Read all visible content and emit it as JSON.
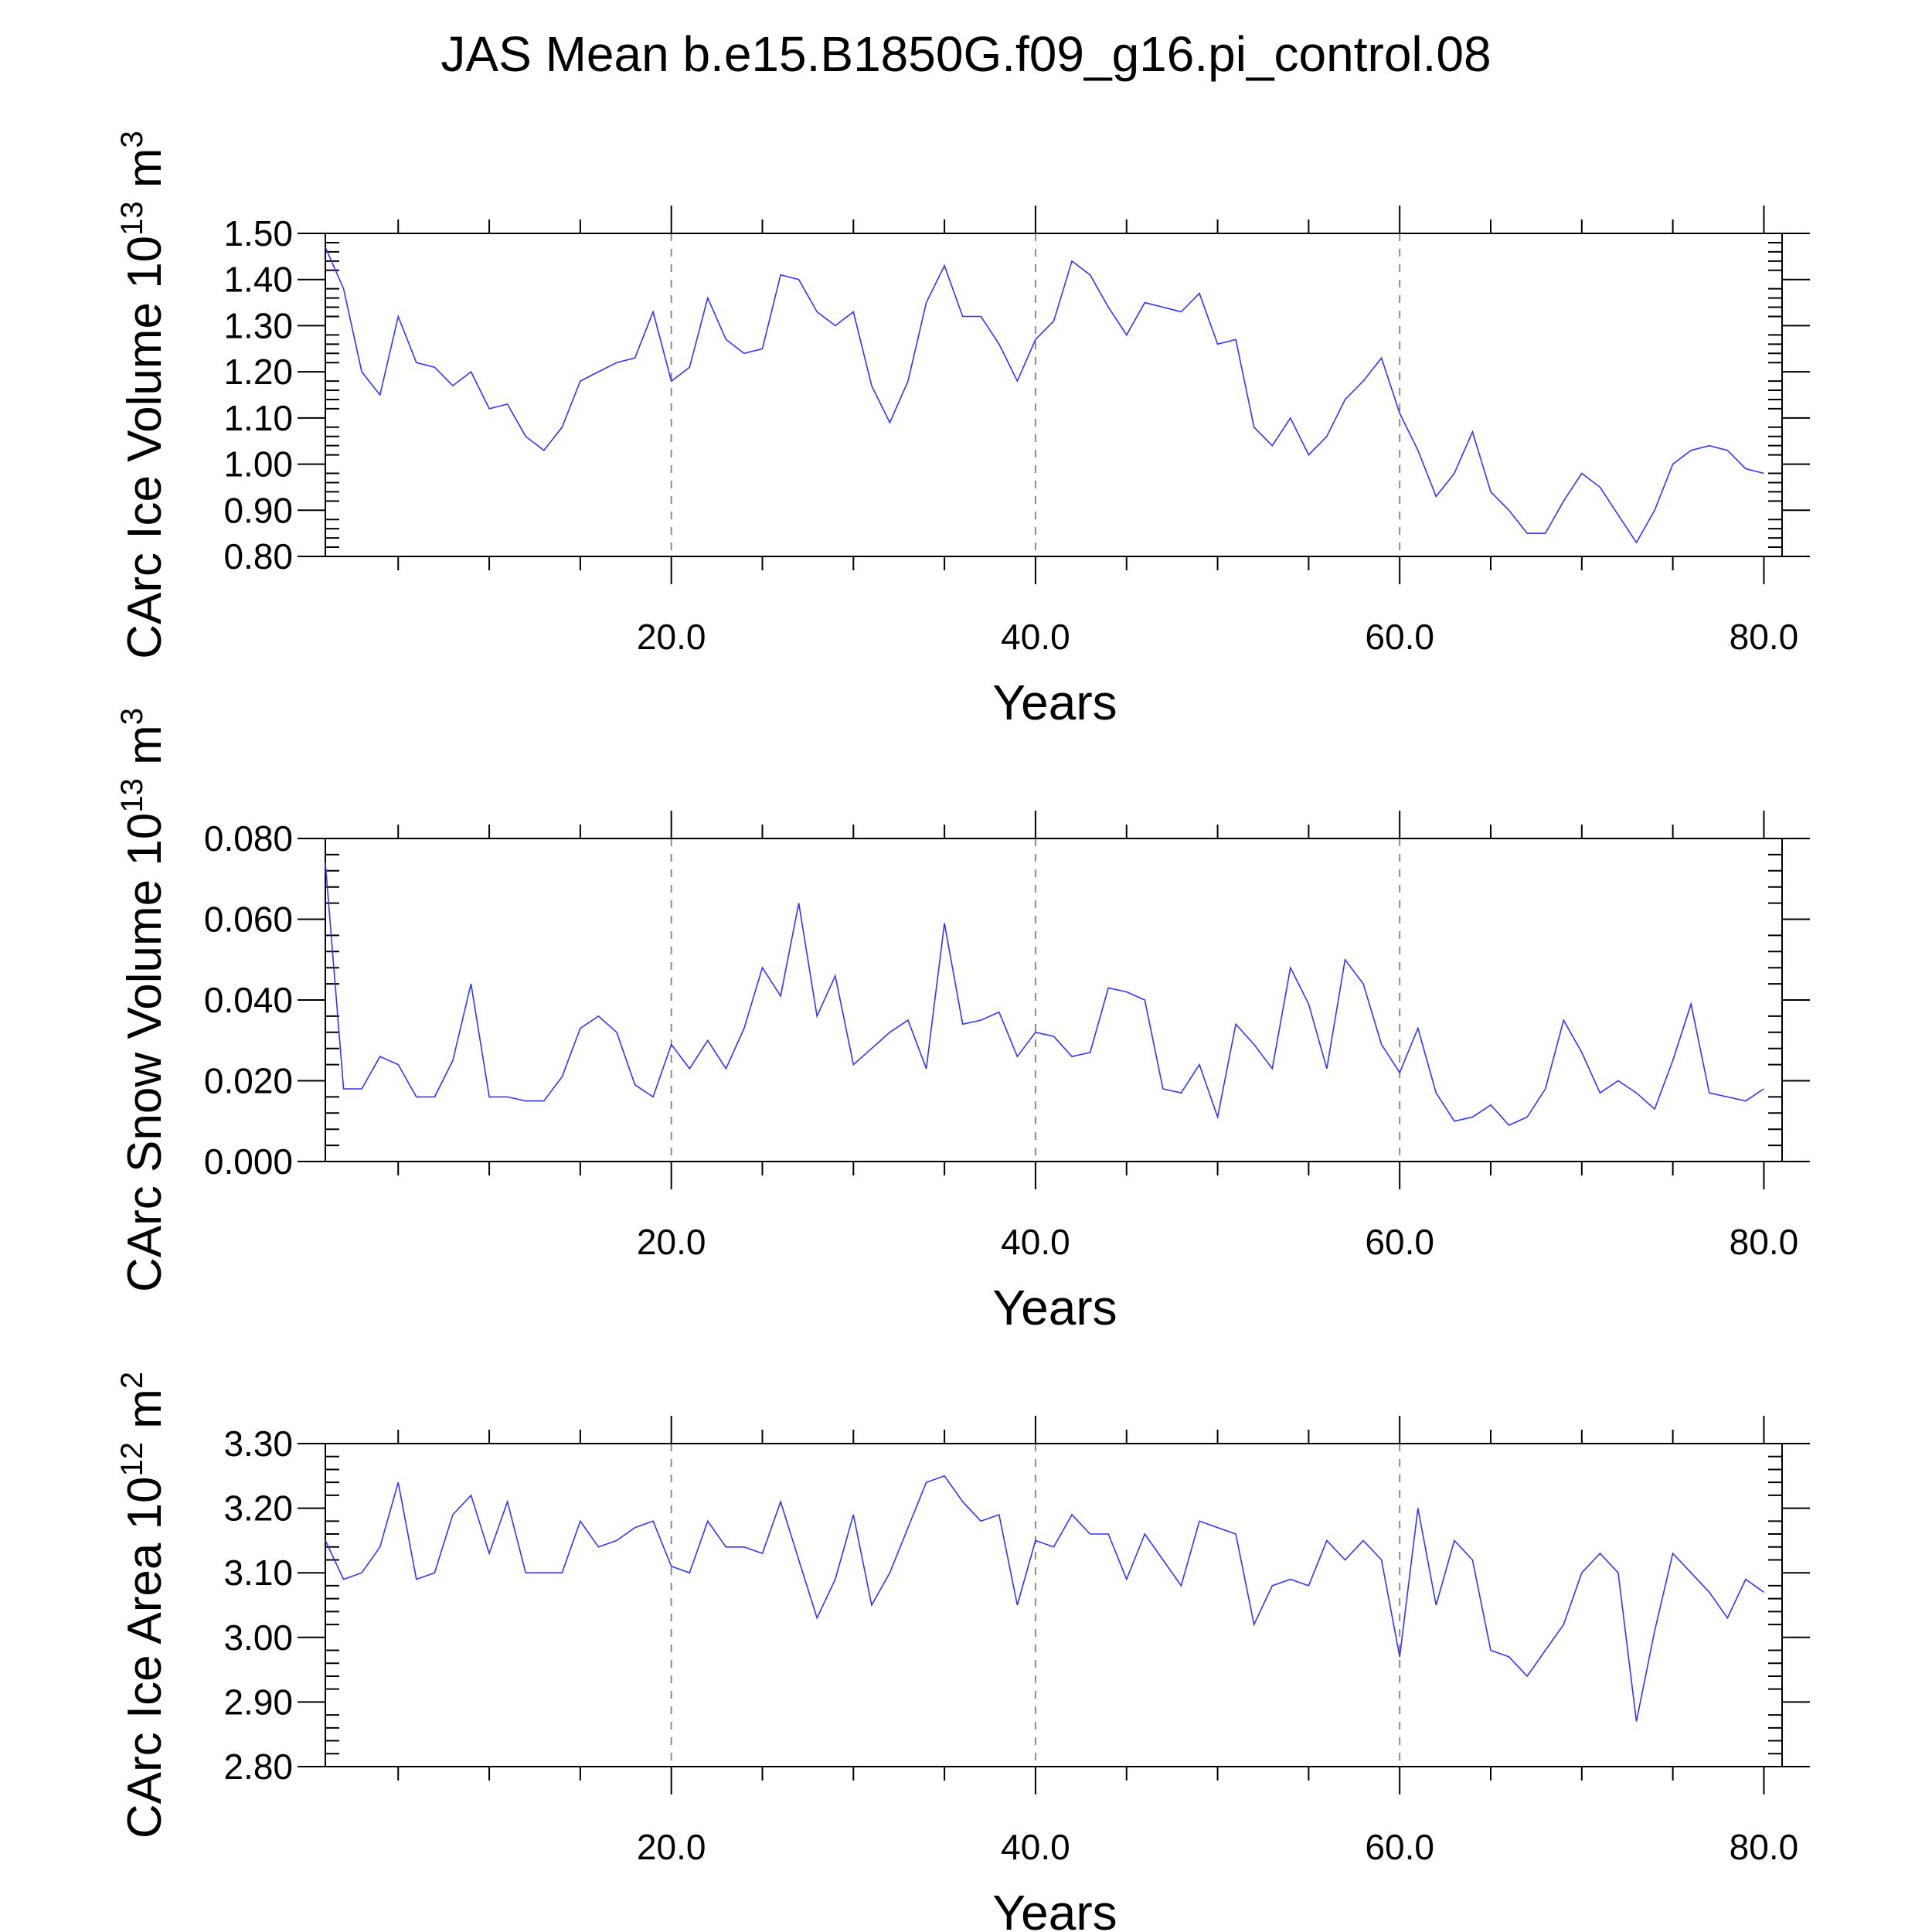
{
  "title": "JAS Mean b.e15.B1850G.f09_g16.pi_control.08",
  "colors": {
    "series": "#3333ff",
    "grid": "#8c8c8c"
  },
  "chart_data": [
    {
      "type": "line",
      "ylabel_main": "CArc Ice Volume 10",
      "ylabel_exp": "13",
      "ylabel_unit": "m",
      "ylabel_unit_exp": "3",
      "xlabel": "Years",
      "xlim": [
        1,
        81
      ],
      "ylim": [
        0.8,
        1.5
      ],
      "xticks": [
        20,
        40,
        60,
        80
      ],
      "xtick_labels": [
        "20.0",
        "40.0",
        "60.0",
        "80.0"
      ],
      "yticks": [
        0.8,
        0.9,
        1.0,
        1.1,
        1.2,
        1.3,
        1.4,
        1.5
      ],
      "ytick_labels": [
        "0.80",
        "0.90",
        "1.00",
        "1.10",
        "1.20",
        "1.30",
        "1.40",
        "1.50"
      ],
      "grid_x": [
        20,
        40,
        60
      ],
      "x_start": 1,
      "values": [
        1.47,
        1.38,
        1.2,
        1.15,
        1.32,
        1.22,
        1.21,
        1.17,
        1.2,
        1.12,
        1.13,
        1.06,
        1.03,
        1.08,
        1.18,
        1.2,
        1.22,
        1.23,
        1.33,
        1.18,
        1.21,
        1.36,
        1.27,
        1.24,
        1.25,
        1.41,
        1.4,
        1.33,
        1.3,
        1.33,
        1.17,
        1.09,
        1.18,
        1.35,
        1.43,
        1.32,
        1.32,
        1.26,
        1.18,
        1.27,
        1.31,
        1.44,
        1.41,
        1.34,
        1.28,
        1.35,
        1.34,
        1.33,
        1.37,
        1.26,
        1.27,
        1.08,
        1.04,
        1.1,
        1.02,
        1.06,
        1.14,
        1.18,
        1.23,
        1.11,
        1.03,
        0.93,
        0.98,
        1.07,
        0.94,
        0.9,
        0.85,
        0.85,
        0.92,
        0.98,
        0.95,
        0.89,
        0.83,
        0.9,
        1.0,
        1.03,
        1.04,
        1.03,
        0.99,
        0.98
      ]
    },
    {
      "type": "line",
      "ylabel_main": "CArc Snow Volume 10",
      "ylabel_exp": "13",
      "ylabel_unit": "m",
      "ylabel_unit_exp": "3",
      "xlabel": "Years",
      "xlim": [
        1,
        81
      ],
      "ylim": [
        0.0,
        0.08
      ],
      "xticks": [
        20,
        40,
        60,
        80
      ],
      "xtick_labels": [
        "20.0",
        "40.0",
        "60.0",
        "80.0"
      ],
      "yticks": [
        0.0,
        0.02,
        0.04,
        0.06,
        0.08
      ],
      "ytick_labels": [
        "0.000",
        "0.020",
        "0.040",
        "0.060",
        "0.080"
      ],
      "grid_x": [
        20,
        40,
        60
      ],
      "x_start": 1,
      "values": [
        0.074,
        0.018,
        0.018,
        0.026,
        0.024,
        0.016,
        0.016,
        0.025,
        0.044,
        0.016,
        0.016,
        0.015,
        0.015,
        0.021,
        0.033,
        0.036,
        0.032,
        0.019,
        0.016,
        0.029,
        0.023,
        0.03,
        0.023,
        0.033,
        0.048,
        0.041,
        0.064,
        0.036,
        0.046,
        0.024,
        0.028,
        0.032,
        0.035,
        0.023,
        0.059,
        0.034,
        0.035,
        0.037,
        0.026,
        0.032,
        0.031,
        0.026,
        0.027,
        0.043,
        0.042,
        0.04,
        0.018,
        0.017,
        0.024,
        0.011,
        0.034,
        0.029,
        0.023,
        0.048,
        0.039,
        0.023,
        0.05,
        0.044,
        0.029,
        0.022,
        0.033,
        0.017,
        0.01,
        0.011,
        0.014,
        0.009,
        0.011,
        0.018,
        0.035,
        0.027,
        0.017,
        0.02,
        0.017,
        0.013,
        0.025,
        0.039,
        0.017,
        0.016,
        0.015,
        0.018
      ]
    },
    {
      "type": "line",
      "ylabel_main": "CArc Ice Area 10",
      "ylabel_exp": "12",
      "ylabel_unit": "m",
      "ylabel_unit_exp": "2",
      "xlabel": "Years",
      "xlim": [
        1,
        81
      ],
      "ylim": [
        2.8,
        3.3
      ],
      "xticks": [
        20,
        40,
        60,
        80
      ],
      "xtick_labels": [
        "20.0",
        "40.0",
        "60.0",
        "80.0"
      ],
      "yticks": [
        2.8,
        2.9,
        3.0,
        3.1,
        3.2,
        3.3
      ],
      "ytick_labels": [
        "2.80",
        "2.90",
        "3.00",
        "3.10",
        "3.20",
        "3.30"
      ],
      "grid_x": [
        20,
        40,
        60
      ],
      "x_start": 1,
      "values": [
        3.15,
        3.09,
        3.1,
        3.14,
        3.24,
        3.09,
        3.1,
        3.19,
        3.22,
        3.13,
        3.21,
        3.1,
        3.1,
        3.1,
        3.18,
        3.14,
        3.15,
        3.17,
        3.18,
        3.11,
        3.1,
        3.18,
        3.14,
        3.14,
        3.13,
        3.21,
        3.12,
        3.03,
        3.09,
        3.19,
        3.05,
        3.1,
        3.17,
        3.24,
        3.25,
        3.21,
        3.18,
        3.19,
        3.05,
        3.15,
        3.14,
        3.19,
        3.16,
        3.16,
        3.09,
        3.16,
        3.12,
        3.08,
        3.18,
        3.17,
        3.16,
        3.02,
        3.08,
        3.09,
        3.08,
        3.15,
        3.12,
        3.15,
        3.12,
        2.97,
        3.2,
        3.05,
        3.15,
        3.12,
        2.98,
        2.97,
        2.94,
        2.98,
        3.02,
        3.1,
        3.13,
        3.1,
        2.87,
        3.01,
        3.13,
        3.1,
        3.07,
        3.03,
        3.09,
        3.07
      ]
    }
  ]
}
